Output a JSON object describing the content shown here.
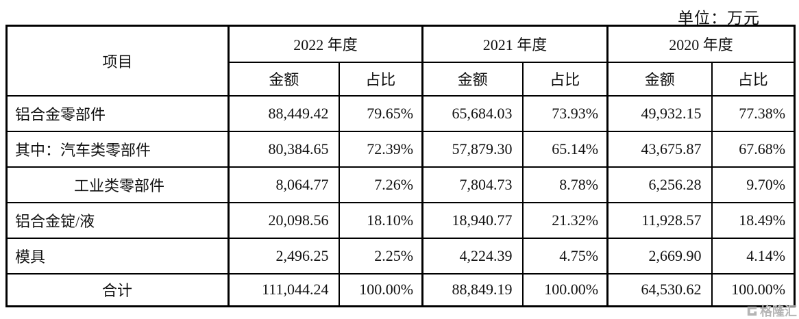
{
  "unit_label": "单位：万元",
  "table": {
    "item_header": "项目",
    "year_groups": [
      {
        "label": "2022 年度",
        "amount_header": "金额",
        "ratio_header": "占比"
      },
      {
        "label": "2021 年度",
        "amount_header": "金额",
        "ratio_header": "占比"
      },
      {
        "label": "2020 年度",
        "amount_header": "金额",
        "ratio_header": "占比"
      }
    ],
    "rows": [
      {
        "item": "铝合金零部件",
        "indent": false,
        "values": [
          "88,449.42",
          "79.65%",
          "65,684.03",
          "73.93%",
          "49,932.15",
          "77.38%"
        ]
      },
      {
        "item": "其中：汽车类零部件",
        "indent": false,
        "values": [
          "80,384.65",
          "72.39%",
          "57,879.30",
          "65.14%",
          "43,675.87",
          "67.68%"
        ]
      },
      {
        "item": "工业类零部件",
        "indent": true,
        "values": [
          "8,064.77",
          "7.26%",
          "7,804.73",
          "8.78%",
          "6,256.28",
          "9.70%"
        ]
      },
      {
        "item": "铝合金锭/液",
        "indent": false,
        "values": [
          "20,098.56",
          "18.10%",
          "18,940.77",
          "21.32%",
          "11,928.57",
          "18.49%"
        ]
      },
      {
        "item": "模具",
        "indent": false,
        "values": [
          "2,496.25",
          "2.25%",
          "4,224.39",
          "4.75%",
          "2,669.90",
          "4.14%"
        ]
      }
    ],
    "total": {
      "item": "合计",
      "values": [
        "111,044.24",
        "100.00%",
        "88,849.19",
        "100.00%",
        "64,530.62",
        "100.00%"
      ]
    }
  },
  "watermark": {
    "text": "格隆汇",
    "color": "#b5b5b5"
  },
  "colors": {
    "border": "#000000",
    "text": "#111111",
    "background": "#ffffff"
  }
}
